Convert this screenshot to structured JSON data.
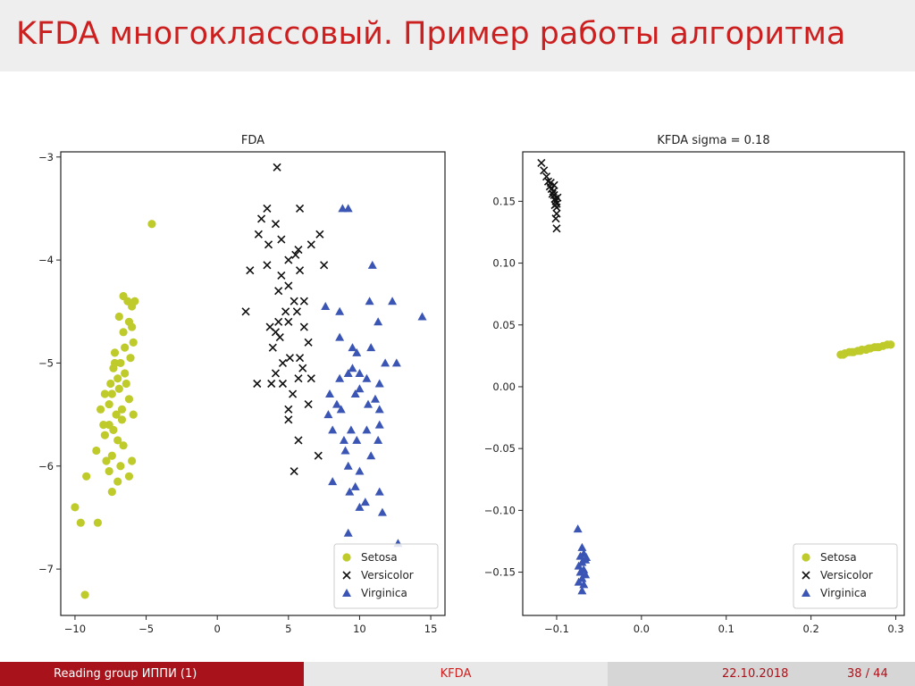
{
  "slide": {
    "title": "KFDA многоклассовый. Пример работы алгоритма",
    "footer": {
      "left": "Reading group ИППИ  (1)",
      "center": "KFDA",
      "date": "22.10.2018",
      "page": "38 / 44"
    }
  },
  "colors": {
    "title": "#cc2020",
    "footer_left_bg": "#a8131b",
    "setosa": "#bfca2b",
    "versicolor": "#111111",
    "virginica": "#3a55b4"
  },
  "chart_data": [
    {
      "type": "scatter",
      "title": "FDA",
      "xlabel": "",
      "ylabel": "",
      "xlim": [
        -11,
        16
      ],
      "ylim": [
        -7.45,
        -2.95
      ],
      "xticks": [
        -10,
        -5,
        0,
        5,
        10,
        15
      ],
      "xtick_labels": [
        "−10",
        "−5",
        "0",
        "5",
        "10",
        "15"
      ],
      "yticks": [
        -3,
        -4,
        -5,
        -6,
        -7
      ],
      "ytick_labels": [
        "−3",
        "−4",
        "−5",
        "−6",
        "−7"
      ],
      "legend_position": "bottom-right",
      "series": [
        {
          "name": "Setosa",
          "marker": "circle",
          "points": [
            [
              -4.6,
              -3.65
            ],
            [
              -6.6,
              -4.35
            ],
            [
              -5.8,
              -4.4
            ],
            [
              -6.0,
              -4.45
            ],
            [
              -6.9,
              -4.55
            ],
            [
              -6.2,
              -4.6
            ],
            [
              -6.0,
              -4.65
            ],
            [
              -6.6,
              -4.7
            ],
            [
              -5.9,
              -4.8
            ],
            [
              -6.5,
              -4.85
            ],
            [
              -7.2,
              -4.9
            ],
            [
              -6.1,
              -4.95
            ],
            [
              -6.8,
              -5.0
            ],
            [
              -7.3,
              -5.05
            ],
            [
              -6.5,
              -5.1
            ],
            [
              -7.0,
              -5.15
            ],
            [
              -7.5,
              -5.2
            ],
            [
              -6.9,
              -5.25
            ],
            [
              -7.4,
              -5.3
            ],
            [
              -6.2,
              -5.35
            ],
            [
              -7.6,
              -5.4
            ],
            [
              -6.7,
              -5.45
            ],
            [
              -8.2,
              -5.45
            ],
            [
              -5.9,
              -5.5
            ],
            [
              -6.7,
              -5.55
            ],
            [
              -7.6,
              -5.6
            ],
            [
              -8.0,
              -5.6
            ],
            [
              -7.3,
              -5.65
            ],
            [
              -7.9,
              -5.7
            ],
            [
              -7.0,
              -5.75
            ],
            [
              -6.6,
              -5.8
            ],
            [
              -8.5,
              -5.85
            ],
            [
              -7.4,
              -5.9
            ],
            [
              -7.8,
              -5.95
            ],
            [
              -6.0,
              -5.95
            ],
            [
              -6.8,
              -6.0
            ],
            [
              -7.6,
              -6.05
            ],
            [
              -6.2,
              -6.1
            ],
            [
              -9.2,
              -6.1
            ],
            [
              -7.0,
              -6.15
            ],
            [
              -7.4,
              -6.25
            ],
            [
              -10.0,
              -6.4
            ],
            [
              -9.6,
              -6.55
            ],
            [
              -8.4,
              -6.55
            ],
            [
              -9.3,
              -7.25
            ],
            [
              -7.2,
              -5.0
            ],
            [
              -6.4,
              -5.2
            ],
            [
              -7.1,
              -5.5
            ],
            [
              -7.9,
              -5.3
            ],
            [
              -6.3,
              -4.4
            ]
          ]
        },
        {
          "name": "Versicolor",
          "marker": "x",
          "points": [
            [
              4.2,
              -3.1
            ],
            [
              3.5,
              -3.5
            ],
            [
              5.8,
              -3.5
            ],
            [
              3.1,
              -3.6
            ],
            [
              4.1,
              -3.65
            ],
            [
              2.9,
              -3.75
            ],
            [
              7.2,
              -3.75
            ],
            [
              4.5,
              -3.8
            ],
            [
              6.6,
              -3.85
            ],
            [
              3.6,
              -3.85
            ],
            [
              5.7,
              -3.9
            ],
            [
              5.5,
              -3.95
            ],
            [
              5.0,
              -4.0
            ],
            [
              7.5,
              -4.05
            ],
            [
              3.5,
              -4.05
            ],
            [
              2.3,
              -4.1
            ],
            [
              5.8,
              -4.1
            ],
            [
              4.5,
              -4.15
            ],
            [
              5.0,
              -4.25
            ],
            [
              4.3,
              -4.3
            ],
            [
              6.1,
              -4.4
            ],
            [
              5.4,
              -4.4
            ],
            [
              5.6,
              -4.5
            ],
            [
              4.8,
              -4.5
            ],
            [
              2.0,
              -4.5
            ],
            [
              4.3,
              -4.6
            ],
            [
              5.0,
              -4.6
            ],
            [
              3.7,
              -4.65
            ],
            [
              6.1,
              -4.65
            ],
            [
              4.1,
              -4.7
            ],
            [
              4.4,
              -4.75
            ],
            [
              6.4,
              -4.8
            ],
            [
              3.9,
              -4.85
            ],
            [
              5.8,
              -4.95
            ],
            [
              5.1,
              -4.95
            ],
            [
              4.6,
              -5.0
            ],
            [
              6.0,
              -5.05
            ],
            [
              4.1,
              -5.1
            ],
            [
              6.6,
              -5.15
            ],
            [
              5.7,
              -5.15
            ],
            [
              2.8,
              -5.2
            ],
            [
              4.6,
              -5.2
            ],
            [
              3.8,
              -5.2
            ],
            [
              5.3,
              -5.3
            ],
            [
              6.4,
              -5.4
            ],
            [
              5.0,
              -5.45
            ],
            [
              5.0,
              -5.55
            ],
            [
              5.7,
              -5.75
            ],
            [
              7.1,
              -5.9
            ],
            [
              5.4,
              -6.05
            ]
          ]
        },
        {
          "name": "Virginica",
          "marker": "triangle",
          "points": [
            [
              8.8,
              -3.5
            ],
            [
              9.2,
              -3.5
            ],
            [
              10.9,
              -4.05
            ],
            [
              10.7,
              -4.4
            ],
            [
              12.3,
              -4.4
            ],
            [
              7.6,
              -4.45
            ],
            [
              8.6,
              -4.5
            ],
            [
              14.4,
              -4.55
            ],
            [
              11.3,
              -4.6
            ],
            [
              8.6,
              -4.75
            ],
            [
              10.8,
              -4.85
            ],
            [
              9.5,
              -4.85
            ],
            [
              9.8,
              -4.9
            ],
            [
              11.8,
              -5.0
            ],
            [
              12.6,
              -5.0
            ],
            [
              9.5,
              -5.05
            ],
            [
              9.2,
              -5.1
            ],
            [
              10.0,
              -5.1
            ],
            [
              8.6,
              -5.15
            ],
            [
              10.5,
              -5.15
            ],
            [
              11.4,
              -5.2
            ],
            [
              10.0,
              -5.25
            ],
            [
              7.9,
              -5.3
            ],
            [
              9.7,
              -5.3
            ],
            [
              11.1,
              -5.35
            ],
            [
              8.4,
              -5.4
            ],
            [
              10.6,
              -5.4
            ],
            [
              11.4,
              -5.45
            ],
            [
              8.7,
              -5.45
            ],
            [
              7.8,
              -5.5
            ],
            [
              11.4,
              -5.6
            ],
            [
              8.1,
              -5.65
            ],
            [
              9.4,
              -5.65
            ],
            [
              10.5,
              -5.65
            ],
            [
              8.9,
              -5.75
            ],
            [
              9.8,
              -5.75
            ],
            [
              11.3,
              -5.75
            ],
            [
              9.0,
              -5.85
            ],
            [
              10.8,
              -5.9
            ],
            [
              9.2,
              -6.0
            ],
            [
              10.0,
              -6.05
            ],
            [
              8.1,
              -6.15
            ],
            [
              9.7,
              -6.2
            ],
            [
              11.4,
              -6.25
            ],
            [
              9.3,
              -6.25
            ],
            [
              10.4,
              -6.35
            ],
            [
              11.6,
              -6.45
            ],
            [
              10.0,
              -6.4
            ],
            [
              9.2,
              -6.65
            ],
            [
              12.7,
              -6.75
            ]
          ]
        }
      ]
    },
    {
      "type": "scatter",
      "title": "KFDA sigma = 0.18",
      "xlabel": "",
      "ylabel": "",
      "xlim": [
        -0.14,
        0.31
      ],
      "ylim": [
        -0.185,
        0.19
      ],
      "xticks": [
        -0.1,
        0.0,
        0.1,
        0.2,
        0.3
      ],
      "xtick_labels": [
        "−0.1",
        "0.0",
        "0.1",
        "0.2",
        "0.3"
      ],
      "yticks": [
        0.15,
        0.1,
        0.05,
        0.0,
        -0.05,
        -0.1,
        -0.15
      ],
      "ytick_labels": [
        "0.15",
        "0.10",
        "0.05",
        "0.00",
        "−0.05",
        "−0.10",
        "−0.15"
      ],
      "legend_position": "bottom-right",
      "series": [
        {
          "name": "Setosa",
          "marker": "circle",
          "points": [
            [
              0.235,
              0.026
            ],
            [
              0.24,
              0.027
            ],
            [
              0.245,
              0.028
            ],
            [
              0.25,
              0.028
            ],
            [
              0.255,
              0.029
            ],
            [
              0.26,
              0.03
            ],
            [
              0.265,
              0.03
            ],
            [
              0.27,
              0.031
            ],
            [
              0.275,
              0.032
            ],
            [
              0.28,
              0.032
            ],
            [
              0.285,
              0.033
            ],
            [
              0.29,
              0.034
            ],
            [
              0.294,
              0.034
            ],
            [
              0.238,
              0.026
            ],
            [
              0.248,
              0.028
            ],
            [
              0.258,
              0.029
            ],
            [
              0.268,
              0.031
            ],
            [
              0.278,
              0.032
            ]
          ]
        },
        {
          "name": "Versicolor",
          "marker": "x",
          "points": [
            [
              -0.118,
              0.181
            ],
            [
              -0.115,
              0.175
            ],
            [
              -0.112,
              0.17
            ],
            [
              -0.11,
              0.166
            ],
            [
              -0.108,
              0.162
            ],
            [
              -0.106,
              0.16
            ],
            [
              -0.104,
              0.158
            ],
            [
              -0.103,
              0.155
            ],
            [
              -0.102,
              0.152
            ],
            [
              -0.101,
              0.15
            ],
            [
              -0.1,
              0.148
            ],
            [
              -0.1,
              0.145
            ],
            [
              -0.1,
              0.14
            ],
            [
              -0.101,
              0.136
            ],
            [
              -0.1,
              0.128
            ],
            [
              -0.105,
              0.156
            ],
            [
              -0.103,
              0.163
            ],
            [
              -0.099,
              0.153
            ],
            [
              -0.107,
              0.165
            ],
            [
              -0.102,
              0.147
            ]
          ]
        },
        {
          "name": "Virginica",
          "marker": "triangle",
          "points": [
            [
              -0.075,
              -0.115
            ],
            [
              -0.07,
              -0.13
            ],
            [
              -0.068,
              -0.135
            ],
            [
              -0.066,
              -0.14
            ],
            [
              -0.07,
              -0.142
            ],
            [
              -0.074,
              -0.145
            ],
            [
              -0.068,
              -0.148
            ],
            [
              -0.072,
              -0.15
            ],
            [
              -0.066,
              -0.152
            ],
            [
              -0.07,
              -0.155
            ],
            [
              -0.074,
              -0.158
            ],
            [
              -0.068,
              -0.16
            ],
            [
              -0.07,
              -0.165
            ],
            [
              -0.065,
              -0.138
            ],
            [
              -0.072,
              -0.137
            ]
          ]
        }
      ]
    }
  ]
}
